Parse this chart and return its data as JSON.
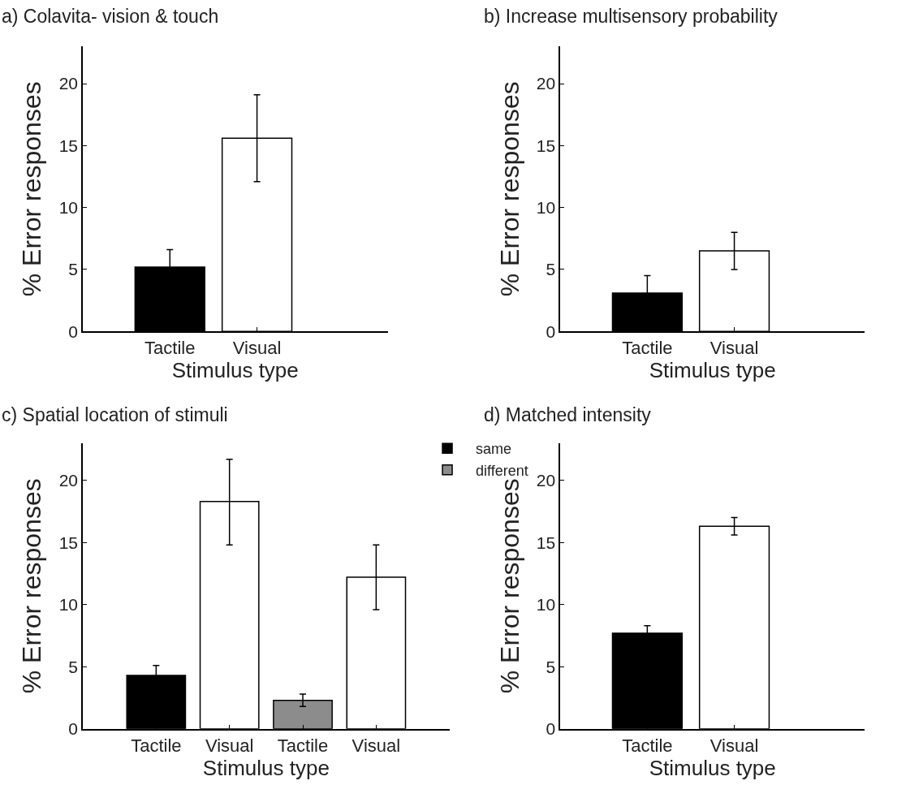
{
  "chart_data": [
    {
      "type": "bar",
      "title": "a) Colavita- vision & touch",
      "xlabel": "Stimulus type",
      "ylabel": "% Error responses",
      "categories": [
        "Tactile",
        "Visual"
      ],
      "values": [
        5.2,
        15.6
      ],
      "colors": [
        "#000000",
        "#ffffff"
      ],
      "errors": [
        1.4,
        3.5
      ],
      "ylim": [
        0,
        23
      ],
      "yticks": [
        0,
        5,
        10,
        15,
        20
      ]
    },
    {
      "type": "bar",
      "title": "b) Increase multisensory probability",
      "xlabel": "Stimulus type",
      "ylabel": "% Error responses",
      "categories": [
        "Tactile",
        "Visual"
      ],
      "values": [
        3.1,
        6.5
      ],
      "colors": [
        "#000000",
        "#ffffff"
      ],
      "errors": [
        1.4,
        1.5
      ],
      "ylim": [
        0,
        23
      ],
      "yticks": [
        0,
        5,
        10,
        15,
        20
      ]
    },
    {
      "type": "bar",
      "title": "c) Spatial location of stimuli",
      "xlabel": "Stimulus type",
      "ylabel": "% Error responses",
      "categories": [
        "Tactile",
        "Visual",
        "Tactile",
        "Visual"
      ],
      "ylim": [
        0,
        23
      ],
      "yticks": [
        0,
        5,
        10,
        15,
        20
      ],
      "legend": "top right",
      "series": [
        {
          "name": "same",
          "color": "#000000",
          "values": [
            4.3,
            null,
            null,
            null
          ],
          "errors": [
            0.8,
            null,
            null,
            null
          ]
        },
        {
          "name": "different",
          "color": "#8c8c8c",
          "values": [
            null,
            null,
            2.3,
            null
          ],
          "errors": [
            null,
            null,
            0.5,
            null
          ]
        },
        {
          "color": "#ffffff",
          "values": [
            null,
            18.3,
            null,
            12.2
          ],
          "errors": [
            null,
            [
              14.8,
              21.7
            ],
            null,
            2.6
          ]
        }
      ]
    },
    {
      "type": "bar",
      "title": "d) Matched intensity",
      "xlabel": "Stimulus type",
      "ylabel": "% Error responses",
      "categories": [
        "Tactile",
        "Visual"
      ],
      "values": [
        7.7,
        16.3
      ],
      "colors": [
        "#000000",
        "#ffffff"
      ],
      "errors": [
        0.6,
        0.7
      ],
      "ylim": [
        0,
        23
      ],
      "yticks": [
        0,
        5,
        10,
        15,
        20
      ]
    }
  ]
}
